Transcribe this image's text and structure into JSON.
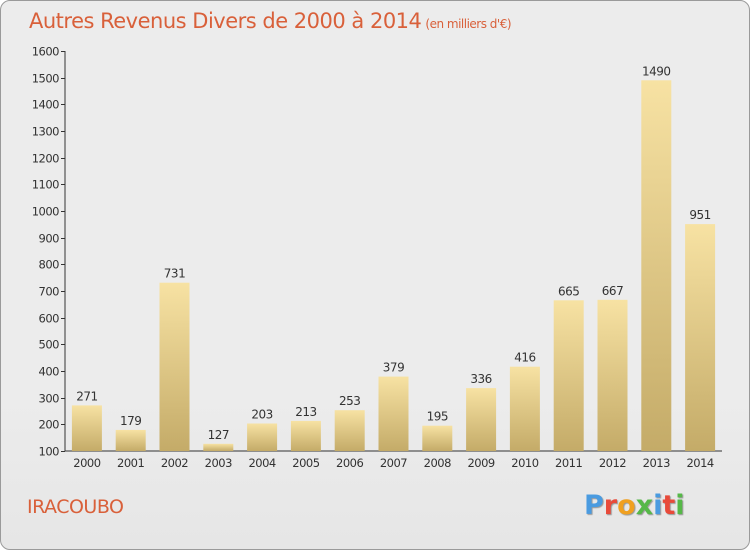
{
  "title": "Autres Revenus Divers de 2000 à 2014",
  "subtitle": "(en milliers d'€)",
  "commune": "IRACOUBO",
  "logo": {
    "letters": [
      "P",
      "r",
      "o",
      "x",
      "i",
      "t",
      "i"
    ],
    "colors": [
      "#4a9be0",
      "#e84a3a",
      "#f0a020",
      "#56b848",
      "#4a9be0",
      "#e84a3a",
      "#56b848"
    ]
  },
  "colors": {
    "accent": "#d9603a",
    "bar_light": "#f5dd9a",
    "bar_dark": "#c5ad6a"
  },
  "chart_data": {
    "type": "bar",
    "categories": [
      "2000",
      "2001",
      "2002",
      "2003",
      "2004",
      "2005",
      "2006",
      "2007",
      "2008",
      "2009",
      "2010",
      "2011",
      "2012",
      "2013",
      "2014"
    ],
    "values": [
      271,
      179,
      731,
      127,
      203,
      213,
      253,
      379,
      195,
      336,
      416,
      665,
      667,
      1490,
      951
    ],
    "ylim": [
      100,
      1600
    ],
    "yticks": [
      100,
      200,
      300,
      400,
      500,
      600,
      700,
      800,
      900,
      1000,
      1100,
      1200,
      1300,
      1400,
      1500,
      1600
    ],
    "grid": false,
    "title": "Autres Revenus Divers de 2000 à 2014",
    "xlabel": "",
    "ylabel": ""
  }
}
